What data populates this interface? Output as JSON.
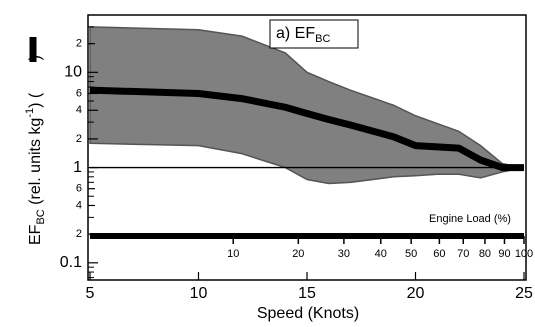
{
  "chart_data": {
    "type": "line",
    "annotation": [
      "a) EF",
      "BC"
    ],
    "xlabel": "Speed (Knots)",
    "ylabel": [
      "EF",
      "BC",
      " (rel. units kg",
      "-1",
      ") (",
      " )"
    ],
    "x": [
      5,
      10,
      12,
      14,
      15,
      16,
      17,
      19,
      20,
      21,
      22,
      23,
      24,
      25
    ],
    "series": [
      {
        "color": "#000000",
        "values": [
          6.5,
          6.0,
          5.3,
          4.3,
          3.7,
          3.2,
          2.8,
          2.1,
          1.7,
          1.65,
          1.6,
          1.2,
          1.0,
          1.0
        ]
      }
    ],
    "band": {
      "color": "#808080",
      "edge_color": "#555555",
      "upper": [
        30,
        28,
        24,
        16,
        10,
        8,
        6.5,
        4.5,
        3.5,
        2.9,
        2.4,
        1.7,
        1.1,
        1.0
      ],
      "lower": [
        1.8,
        1.7,
        1.4,
        1.0,
        0.75,
        0.68,
        0.7,
        0.8,
        0.82,
        0.85,
        0.85,
        0.78,
        0.9,
        1.0
      ]
    },
    "reference_line": 1,
    "log_y": true,
    "xlim": [
      5,
      25
    ],
    "xticks": [
      5,
      10,
      15,
      20,
      25
    ],
    "ylim": [
      0.066,
      40
    ],
    "yticks": [
      0.1,
      {
        "value": 0.2,
        "label": "2"
      },
      {
        "value": 0.4,
        "label": "4"
      },
      {
        "value": 0.6,
        "label": "6"
      },
      1,
      2,
      4,
      6,
      10,
      {
        "value": 20,
        "label": "2"
      }
    ],
    "yminor": [
      0.07,
      0.08,
      0.09,
      0.3,
      0.5,
      0.7,
      0.8,
      0.9,
      3,
      5,
      7,
      8,
      9,
      30
    ],
    "engine_load": {
      "title": "Engine Load (%)",
      "ticks": [
        10,
        20,
        30,
        40,
        50,
        60,
        70,
        80,
        90,
        100
      ],
      "tick_speeds": [
        11.6,
        14.6,
        16.7,
        18.4,
        19.8,
        21.1,
        22.2,
        23.2,
        24.1,
        25
      ]
    }
  }
}
